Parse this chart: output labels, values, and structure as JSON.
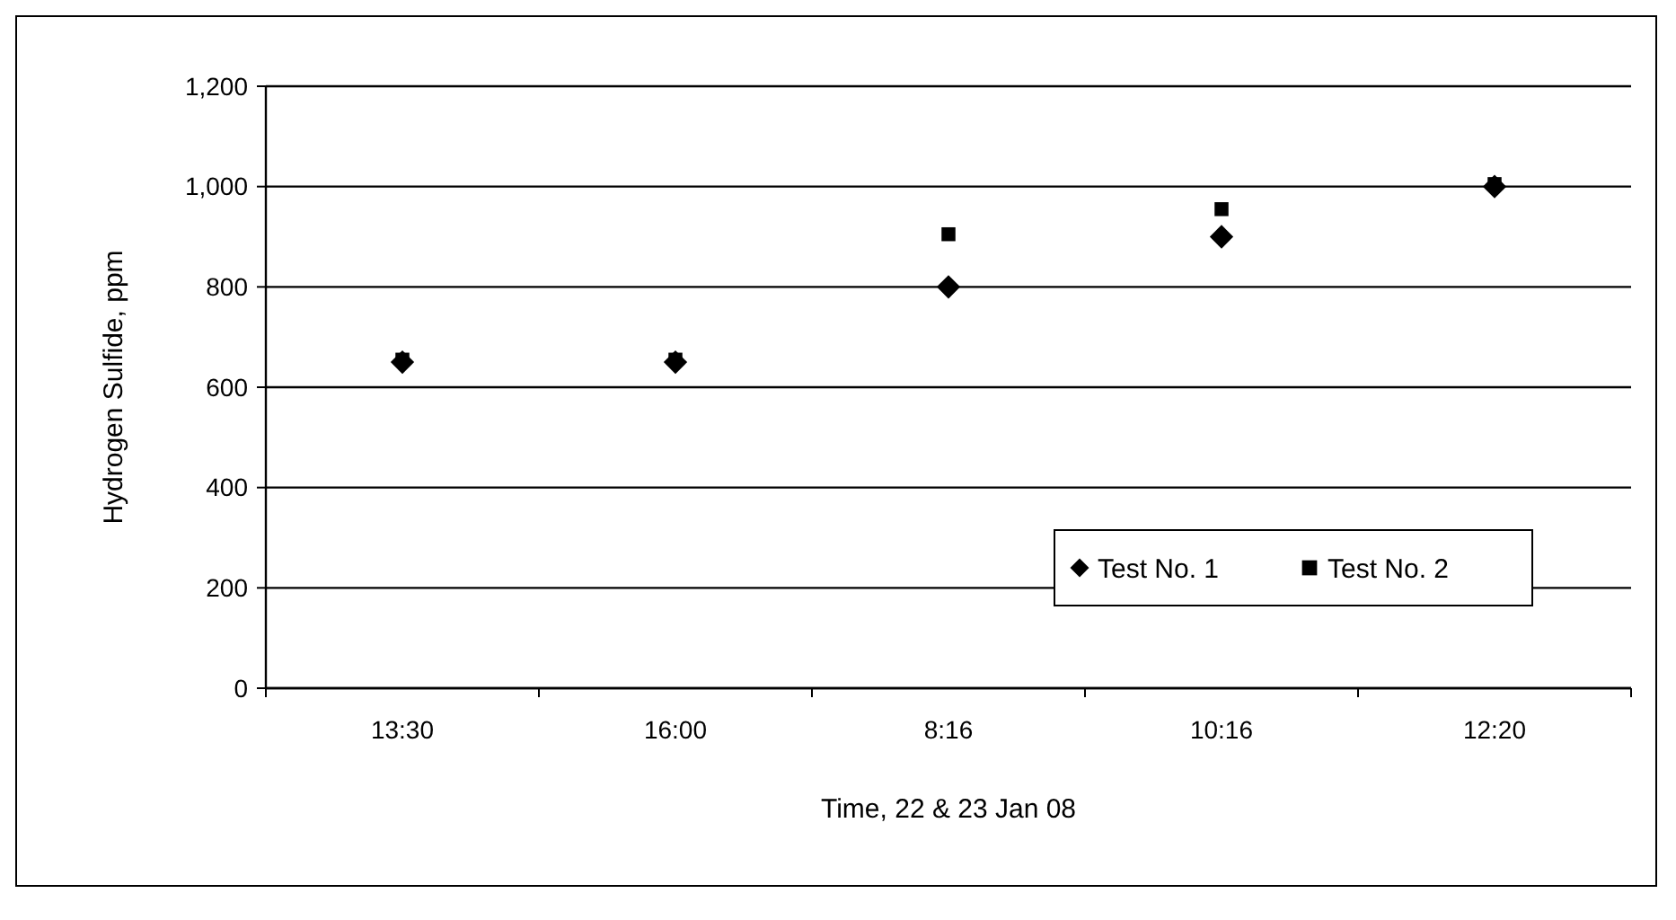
{
  "chart_data": {
    "type": "scatter",
    "xlabel": "Time, 22 & 23 Jan 08",
    "ylabel": "Hydrogen Sulfide, ppm",
    "categories": [
      "13:30",
      "16:00",
      "8:16",
      "10:16",
      "12:20"
    ],
    "series": [
      {
        "name": "Test No. 1",
        "color": "#000000",
        "marker": "diamond",
        "values": [
          650,
          650,
          800,
          900,
          1000
        ]
      },
      {
        "name": "Test No. 2",
        "color": "#000000",
        "marker": "square",
        "values": [
          655,
          655,
          905,
          955,
          1005
        ]
      }
    ],
    "ylim": [
      0,
      1200
    ],
    "yticks": [
      0,
      {
        "value": 200,
        "label": "200"
      },
      {
        "value": 400,
        "label": "400"
      },
      {
        "value": 600,
        "label": "600"
      },
      {
        "value": 800,
        "label": "800"
      },
      {
        "value": 1000,
        "label": "1,000"
      },
      {
        "value": 1200,
        "label": "1,200"
      }
    ],
    "grid": "y",
    "legend": "bottom right"
  }
}
